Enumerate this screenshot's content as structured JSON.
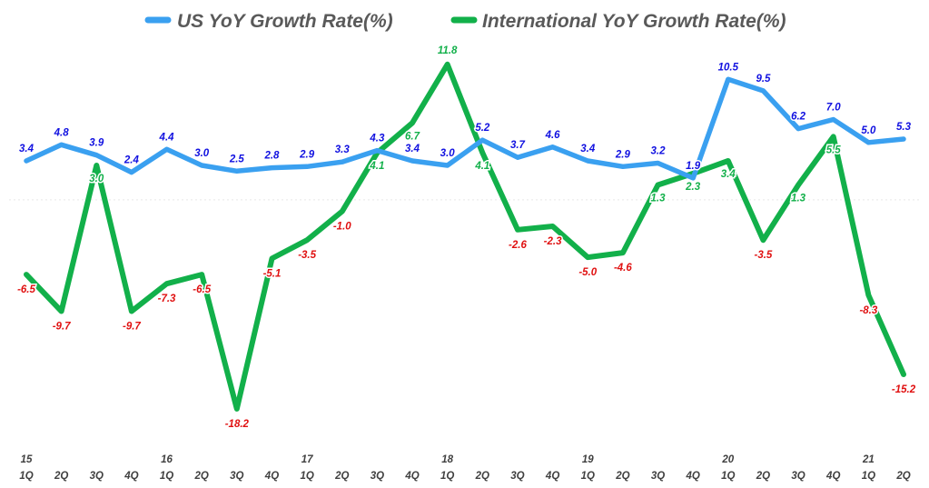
{
  "colors": {
    "us": "#3aa0f0",
    "intl": "#12b04a",
    "us_label": "#1010e0",
    "intl_pos_label": "#12b04a",
    "intl_neg_label": "#e01010",
    "baseline": "#e8e8e8",
    "axis_text": "#404040"
  },
  "chart_data": {
    "type": "line",
    "title": "",
    "xlabel": "",
    "ylabel": "",
    "ylim": [
      -19,
      12.5
    ],
    "grid": false,
    "legend": "top",
    "categories": [
      "1Q",
      "2Q",
      "3Q",
      "4Q",
      "1Q",
      "2Q",
      "3Q",
      "4Q",
      "1Q",
      "2Q",
      "3Q",
      "4Q",
      "1Q",
      "2Q",
      "3Q",
      "4Q",
      "1Q",
      "2Q",
      "3Q",
      "4Q",
      "1Q",
      "2Q",
      "3Q",
      "4Q",
      "1Q",
      "2Q"
    ],
    "year_labels": [
      "15",
      "",
      "",
      "",
      "16",
      "",
      "",
      "",
      "17",
      "",
      "",
      "",
      "18",
      "",
      "",
      "",
      "19",
      "",
      "",
      "",
      "20",
      "",
      "",
      "",
      "21",
      ""
    ],
    "series": [
      {
        "name": "US YoY Growth Rate(%)",
        "key": "us",
        "values": [
          3.4,
          4.8,
          3.9,
          2.4,
          4.4,
          3.0,
          2.5,
          2.8,
          2.9,
          3.3,
          4.3,
          3.4,
          3.0,
          5.2,
          3.7,
          4.6,
          3.4,
          2.9,
          3.2,
          1.9,
          10.5,
          9.5,
          6.2,
          7.0,
          5.0,
          5.3
        ],
        "labels": [
          "3.4",
          "4.8",
          "3.9",
          "2.4",
          "4.4",
          "3.0",
          "2.5",
          "2.8",
          "2.9",
          "3.3",
          "4.3",
          "3.4",
          "3.0",
          "5.2",
          "3.7",
          "4.6",
          "3.4",
          "2.9",
          "3.2",
          "1.9",
          "10.5",
          "9.5",
          "6.2",
          "7.0",
          "5.0",
          "5.3"
        ]
      },
      {
        "name": "International YoY Growth Rate(%)",
        "key": "intl",
        "values": [
          -6.5,
          -9.7,
          3.0,
          -9.7,
          -7.3,
          -6.5,
          -18.2,
          -5.1,
          -3.5,
          -1.0,
          4.1,
          6.7,
          11.8,
          4.1,
          -2.6,
          -2.3,
          -5.0,
          -4.6,
          1.3,
          2.3,
          3.4,
          -3.5,
          1.3,
          5.5,
          -8.3,
          -15.2
        ],
        "labels": [
          "-6.5",
          "-9.7",
          "3.0",
          "-9.7",
          "-7.3",
          "-6.5",
          "-18.2",
          "-5.1",
          "-3.5",
          "-1.0",
          "4.1",
          "6.7",
          "11.8",
          "4.1",
          "-2.6",
          "-2.3",
          "-5.0",
          "-4.6",
          "1.3",
          "2.3",
          "3.4",
          "-3.5",
          "1.3",
          "5.5",
          "-8.3",
          "-15.2"
        ]
      }
    ]
  }
}
